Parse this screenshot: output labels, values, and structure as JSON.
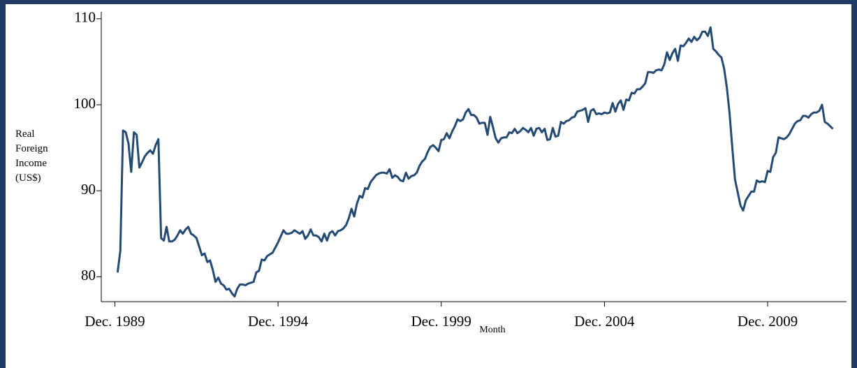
{
  "chart_data": {
    "type": "line",
    "y_label": "Real Foreign Income (US$)",
    "x_label": "Month",
    "color": "#234a73",
    "xlim": [
      "1989-07",
      "2012-05"
    ],
    "ylim": [
      77.1,
      110.8
    ],
    "yticks": [
      80,
      90,
      100,
      110
    ],
    "xticks": [
      {
        "value": "1989-12",
        "label": "Dec. 1989"
      },
      {
        "value": "1994-12",
        "label": "Dec. 1994"
      },
      {
        "value": "1999-12",
        "label": "Dec. 1999"
      },
      {
        "value": "2004-12",
        "label": "Dec. 2004"
      },
      {
        "value": "2009-12",
        "label": "Dec. 2009"
      }
    ],
    "x": [
      "1990-01",
      "1990-02",
      "1990-03",
      "1990-04",
      "1990-05",
      "1990-06",
      "1990-07",
      "1990-08",
      "1990-09",
      "1990-10",
      "1990-11",
      "1990-12",
      "1991-01",
      "1991-02",
      "1991-03",
      "1991-04",
      "1991-05",
      "1991-06",
      "1991-07",
      "1991-08",
      "1991-09",
      "1991-10",
      "1991-11",
      "1991-12",
      "1992-01",
      "1992-02",
      "1992-03",
      "1992-04",
      "1992-05",
      "1992-06",
      "1992-07",
      "1992-08",
      "1992-09",
      "1992-10",
      "1992-11",
      "1992-12",
      "1993-01",
      "1993-02",
      "1993-03",
      "1993-04",
      "1993-05",
      "1993-06",
      "1993-07",
      "1993-08",
      "1993-09",
      "1993-10",
      "1993-11",
      "1993-12",
      "1994-01",
      "1994-02",
      "1994-03",
      "1994-04",
      "1994-05",
      "1994-06",
      "1994-07",
      "1994-08",
      "1994-09",
      "1994-10",
      "1994-11",
      "1994-12",
      "1995-01",
      "1995-02",
      "1995-03",
      "1995-04",
      "1995-05",
      "1995-06",
      "1995-07",
      "1995-08",
      "1995-09",
      "1995-10",
      "1995-11",
      "1995-12",
      "1996-01",
      "1996-02",
      "1996-03",
      "1996-04",
      "1996-05",
      "1996-06",
      "1996-07",
      "1996-08",
      "1996-09",
      "1996-10",
      "1996-11",
      "1996-12",
      "1997-01",
      "1997-02",
      "1997-03",
      "1997-04",
      "1997-05",
      "1997-06",
      "1997-07",
      "1997-08",
      "1997-09",
      "1997-10",
      "1997-11",
      "1997-12",
      "1998-01",
      "1998-02",
      "1998-03",
      "1998-04",
      "1998-05",
      "1998-06",
      "1998-07",
      "1998-08",
      "1998-09",
      "1998-10",
      "1998-11",
      "1998-12",
      "1999-01",
      "1999-02",
      "1999-03",
      "1999-04",
      "1999-05",
      "1999-06",
      "1999-07",
      "1999-08",
      "1999-09",
      "1999-10",
      "1999-11",
      "1999-12",
      "2000-01",
      "2000-02",
      "2000-03",
      "2000-04",
      "2000-05",
      "2000-06",
      "2000-07",
      "2000-08",
      "2000-09",
      "2000-10",
      "2000-11",
      "2000-12",
      "2001-01",
      "2001-02",
      "2001-03",
      "2001-04",
      "2001-05",
      "2001-06",
      "2001-07",
      "2001-08",
      "2001-09",
      "2001-10",
      "2001-11",
      "2001-12",
      "2002-01",
      "2002-02",
      "2002-03",
      "2002-04",
      "2002-05",
      "2002-06",
      "2002-07",
      "2002-08",
      "2002-09",
      "2002-10",
      "2002-11",
      "2002-12",
      "2003-01",
      "2003-02",
      "2003-03",
      "2003-04",
      "2003-05",
      "2003-06",
      "2003-07",
      "2003-08",
      "2003-09",
      "2003-10",
      "2003-11",
      "2003-12",
      "2004-01",
      "2004-02",
      "2004-03",
      "2004-04",
      "2004-05",
      "2004-06",
      "2004-07",
      "2004-08",
      "2004-09",
      "2004-10",
      "2004-11",
      "2004-12",
      "2005-01",
      "2005-02",
      "2005-03",
      "2005-04",
      "2005-05",
      "2005-06",
      "2005-07",
      "2005-08",
      "2005-09",
      "2005-10",
      "2005-11",
      "2005-12",
      "2006-01",
      "2006-02",
      "2006-03",
      "2006-04",
      "2006-05",
      "2006-06",
      "2006-07",
      "2006-08",
      "2006-09",
      "2006-10",
      "2006-11",
      "2006-12",
      "2007-01",
      "2007-02",
      "2007-03",
      "2007-04",
      "2007-05",
      "2007-06",
      "2007-07",
      "2007-08",
      "2007-09",
      "2007-10",
      "2007-11",
      "2007-12",
      "2008-01",
      "2008-02",
      "2008-03",
      "2008-04",
      "2008-05",
      "2008-06",
      "2008-07",
      "2008-08",
      "2008-09",
      "2008-10",
      "2008-11",
      "2008-12",
      "2009-01",
      "2009-02",
      "2009-03",
      "2009-04",
      "2009-05",
      "2009-06",
      "2009-07",
      "2009-08",
      "2009-09",
      "2009-10",
      "2009-11",
      "2009-12",
      "2010-01",
      "2010-02",
      "2010-03",
      "2010-04",
      "2010-05",
      "2010-06",
      "2010-07",
      "2010-08",
      "2010-09",
      "2010-10",
      "2010-11",
      "2010-12",
      "2011-01",
      "2011-02",
      "2011-03",
      "2011-04",
      "2011-05",
      "2011-06",
      "2011-07",
      "2011-08",
      "2011-09",
      "2011-10",
      "2011-11",
      "2011-12"
    ],
    "values": [
      80.5,
      83,
      97,
      96.8,
      95.5,
      92.2,
      96.8,
      96.5,
      92.7,
      93.3,
      94,
      94.4,
      94.7,
      94.3,
      95.3,
      96,
      84.5,
      84.2,
      85.8,
      84.1,
      84.1,
      84.3,
      84.8,
      85.4,
      85,
      85.5,
      85.8,
      85,
      84.8,
      84.5,
      83.5,
      82.5,
      82.7,
      81.7,
      81.9,
      80.8,
      79.4,
      79.9,
      79.2,
      79,
      78.5,
      78.6,
      78.1,
      77.7,
      78.6,
      79.1,
      79.1,
      79,
      79.2,
      79.3,
      79.4,
      80.5,
      80.7,
      82,
      81.9,
      82.4,
      82.6,
      82.8,
      83.4,
      84,
      84.7,
      85.4,
      85,
      85,
      85.1,
      85.4,
      85.2,
      85,
      85.3,
      84.4,
      84.8,
      85.5,
      84.8,
      84.8,
      84.6,
      84.1,
      85,
      84.2,
      85.1,
      85.3,
      84.8,
      85.3,
      85.4,
      85.6,
      86,
      86.8,
      87.9,
      87,
      88.5,
      89.4,
      89.2,
      90.3,
      90.2,
      91,
      91.4,
      91.8,
      92,
      92.1,
      92.1,
      92,
      92.5,
      91.5,
      91.8,
      91.6,
      91.2,
      91.1,
      92.1,
      91.4,
      91.7,
      91.8,
      92.1,
      92.9,
      93.4,
      93.7,
      94.5,
      95.1,
      95.3,
      95,
      94.6,
      95.9,
      96,
      96.7,
      96.1,
      96.9,
      97.5,
      98.3,
      98.1,
      98.3,
      99.1,
      99.5,
      98.8,
      98.8,
      98.5,
      97.8,
      97.9,
      97.9,
      96.5,
      98.6,
      97.4,
      96.1,
      95.6,
      96.1,
      96.2,
      96.2,
      96.8,
      96.7,
      97.2,
      96.7,
      96.9,
      97.3,
      97.1,
      96.8,
      97.3,
      96.4,
      97.2,
      97.3,
      96.8,
      97.2,
      95.9,
      96,
      97.3,
      96.3,
      96.4,
      98,
      97.8,
      98.1,
      98.2,
      98.5,
      98.6,
      99.2,
      99.3,
      99.4,
      99.6,
      98,
      99.3,
      99.5,
      98.9,
      99,
      98.9,
      99.1,
      99,
      99.1,
      100.2,
      99.2,
      100.1,
      100.5,
      99.4,
      100.6,
      100.5,
      101.4,
      101.3,
      101.8,
      101.8,
      102.1,
      102.5,
      103.8,
      103.8,
      103.7,
      104,
      104.1,
      104,
      104.7,
      106.1,
      105.2,
      106,
      106.5,
      105.1,
      106.9,
      106.8,
      107.2,
      107.7,
      107.3,
      107.9,
      107.5,
      107.8,
      108.5,
      108.5,
      108,
      109,
      106.5,
      106.2,
      105.8,
      105.5,
      104.2,
      102,
      99,
      95,
      91.3,
      89.8,
      88.3,
      87.7,
      88.9,
      89.4,
      89.9,
      89.9,
      91.2,
      91,
      91.1,
      91,
      92.3,
      92.2,
      93.9,
      94.4,
      96.2,
      96.1,
      96,
      96.2,
      96.6,
      97.2,
      97.8,
      98.1,
      98.2,
      98.7,
      98.7,
      98.5,
      98.9,
      99.1,
      99.1,
      99.3,
      100,
      98,
      97.8,
      97.5,
      97.2
    ]
  }
}
